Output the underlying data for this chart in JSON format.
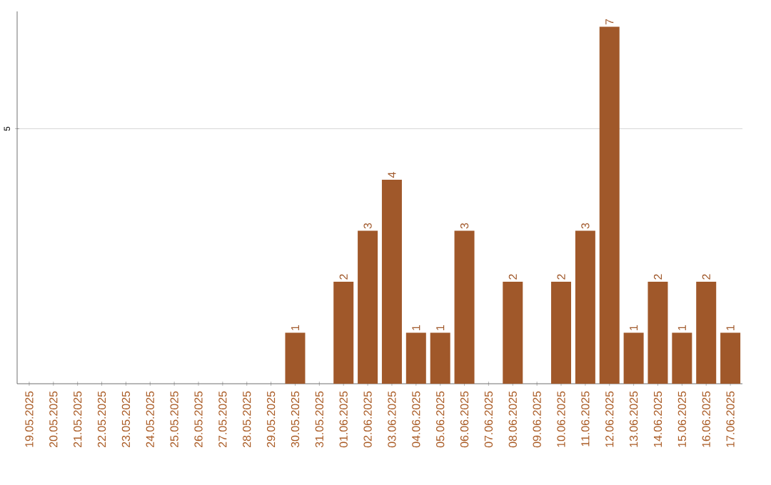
{
  "chart_data": {
    "type": "bar",
    "categories": [
      "19.05.2025",
      "20.05.2025",
      "21.05.2025",
      "22.05.2025",
      "23.05.2025",
      "24.05.2025",
      "25.05.2025",
      "26.05.2025",
      "27.05.2025",
      "28.05.2025",
      "29.05.2025",
      "30.05.2025",
      "31.05.2025",
      "01.06.2025",
      "02.06.2025",
      "03.06.2025",
      "04.06.2025",
      "05.06.2025",
      "06.06.2025",
      "07.06.2025",
      "08.06.2025",
      "09.06.2025",
      "10.06.2025",
      "11.06.2025",
      "12.06.2025",
      "13.06.2025",
      "14.06.2025",
      "15.06.2025",
      "16.06.2025",
      "17.06.2025"
    ],
    "values": [
      0,
      0,
      0,
      0,
      0,
      0,
      0,
      0,
      0,
      0,
      0,
      1,
      0,
      2,
      3,
      4,
      1,
      1,
      3,
      0,
      2,
      0,
      2,
      3,
      7,
      1,
      2,
      1,
      2,
      1
    ],
    "value_labels": [
      null,
      null,
      null,
      null,
      null,
      null,
      null,
      null,
      null,
      null,
      null,
      "1",
      null,
      "2",
      "3",
      "4",
      "1",
      "1",
      "3",
      null,
      "2",
      null,
      "2",
      "3",
      "7",
      "1",
      "2",
      "1",
      "2",
      "1"
    ],
    "color": "#a0582a",
    "ylim": [
      0,
      7.3
    ],
    "yticks": [
      5
    ],
    "grid": "y"
  }
}
